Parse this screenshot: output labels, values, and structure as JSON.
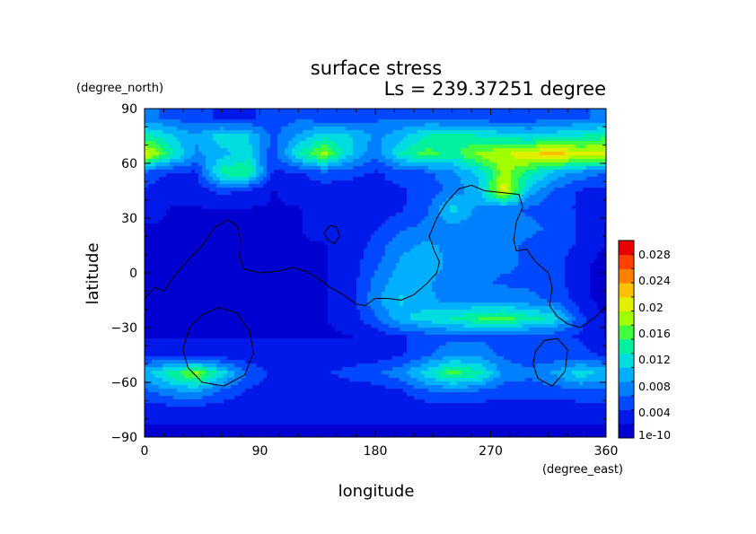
{
  "chart_data": {
    "type": "heatmap",
    "title": "surface stress",
    "subtitle": "Ls = 239.37251 degree",
    "xlabel": "longitude",
    "ylabel": "latitude",
    "xunits": "(degree_east)",
    "yunits": "(degree_north)",
    "xlim": [
      0,
      360
    ],
    "ylim": [
      -90,
      90
    ],
    "xticks": [
      "0",
      "90",
      "180",
      "270",
      "360"
    ],
    "yticks": [
      "90",
      "60",
      "30",
      "0",
      "−30",
      "−60",
      "−90"
    ],
    "colorbar": {
      "min": 0,
      "max": 0.03,
      "tick_labels": [
        "1e-10",
        "0.004",
        "0.008",
        "0.012",
        "0.016",
        "0.02",
        "0.024",
        "0.028"
      ],
      "colors": [
        "#0000d0",
        "#0018e8",
        "#0048ff",
        "#0080ff",
        "#00b0ff",
        "#00dce0",
        "#00f0a0",
        "#40ff40",
        "#a0ff00",
        "#e0f000",
        "#ffc000",
        "#ff8000",
        "#ff4000",
        "#e80000"
      ]
    },
    "lat": [
      85,
      75,
      65,
      55,
      45,
      35,
      25,
      15,
      5,
      -5,
      -15,
      -25,
      -35,
      -45,
      -55,
      -65,
      -75,
      -85
    ],
    "lon": [
      0,
      20,
      40,
      60,
      80,
      100,
      120,
      140,
      160,
      180,
      200,
      220,
      240,
      260,
      280,
      300,
      320,
      340,
      360
    ],
    "values": [
      [
        0.007,
        0.006,
        0.005,
        0.004,
        0.004,
        0.005,
        0.006,
        0.005,
        0.005,
        0.006,
        0.006,
        0.006,
        0.005,
        0.005,
        0.005,
        0.005,
        0.006,
        0.006,
        0.007
      ],
      [
        0.014,
        0.011,
        0.009,
        0.012,
        0.011,
        0.006,
        0.009,
        0.012,
        0.011,
        0.008,
        0.01,
        0.013,
        0.014,
        0.013,
        0.012,
        0.011,
        0.012,
        0.013,
        0.014
      ],
      [
        0.021,
        0.014,
        0.008,
        0.01,
        0.012,
        0.005,
        0.013,
        0.018,
        0.011,
        0.007,
        0.013,
        0.016,
        0.014,
        0.018,
        0.019,
        0.021,
        0.023,
        0.02,
        0.021
      ],
      [
        0.006,
        0.004,
        0.004,
        0.014,
        0.015,
        0.004,
        0.004,
        0.006,
        0.005,
        0.004,
        0.005,
        0.006,
        0.008,
        0.011,
        0.018,
        0.014,
        0.01,
        0.008,
        0.006
      ],
      [
        0.004,
        0.003,
        0.003,
        0.005,
        0.004,
        0.002,
        0.003,
        0.003,
        0.003,
        0.004,
        0.004,
        0.005,
        0.007,
        0.01,
        0.021,
        0.01,
        0.006,
        0.004,
        0.004
      ],
      [
        0.003,
        0.002,
        0.002,
        0.002,
        0.002,
        0.002,
        0.002,
        0.003,
        0.003,
        0.003,
        0.004,
        0.006,
        0.012,
        0.008,
        0.007,
        0.006,
        0.005,
        0.004,
        0.003
      ],
      [
        0.002,
        0.002,
        0.002,
        0.002,
        0.002,
        0.002,
        0.002,
        0.003,
        0.003,
        0.004,
        0.006,
        0.007,
        0.008,
        0.007,
        0.007,
        0.007,
        0.006,
        0.004,
        0.002
      ],
      [
        0.002,
        0.001,
        0.001,
        0.001,
        0.001,
        0.002,
        0.002,
        0.002,
        0.003,
        0.005,
        0.008,
        0.009,
        0.008,
        0.008,
        0.007,
        0.006,
        0.005,
        0.004,
        0.002
      ],
      [
        0.001,
        0.001,
        0.001,
        0.001,
        0.001,
        0.001,
        0.002,
        0.002,
        0.003,
        0.006,
        0.009,
        0.01,
        0.008,
        0.007,
        0.007,
        0.006,
        0.005,
        0.003,
        0.001
      ],
      [
        0.001,
        0.001,
        0.001,
        0.001,
        0.001,
        0.001,
        0.002,
        0.002,
        0.003,
        0.007,
        0.01,
        0.009,
        0.007,
        0.007,
        0.006,
        0.006,
        0.005,
        0.003,
        0.001
      ],
      [
        0.001,
        0.001,
        0.001,
        0.001,
        0.001,
        0.001,
        0.002,
        0.002,
        0.003,
        0.008,
        0.011,
        0.009,
        0.008,
        0.008,
        0.008,
        0.007,
        0.006,
        0.003,
        0.001
      ],
      [
        0.002,
        0.001,
        0.001,
        0.001,
        0.001,
        0.002,
        0.002,
        0.002,
        0.003,
        0.006,
        0.01,
        0.012,
        0.013,
        0.015,
        0.016,
        0.014,
        0.012,
        0.005,
        0.002
      ],
      [
        0.002,
        0.002,
        0.002,
        0.002,
        0.002,
        0.002,
        0.002,
        0.002,
        0.002,
        0.003,
        0.004,
        0.005,
        0.006,
        0.006,
        0.005,
        0.005,
        0.005,
        0.004,
        0.002
      ],
      [
        0.004,
        0.003,
        0.003,
        0.003,
        0.003,
        0.003,
        0.003,
        0.003,
        0.003,
        0.003,
        0.004,
        0.006,
        0.008,
        0.008,
        0.006,
        0.005,
        0.005,
        0.005,
        0.004
      ],
      [
        0.01,
        0.014,
        0.018,
        0.012,
        0.006,
        0.004,
        0.004,
        0.004,
        0.005,
        0.006,
        0.008,
        0.012,
        0.016,
        0.014,
        0.008,
        0.007,
        0.009,
        0.012,
        0.01
      ],
      [
        0.006,
        0.008,
        0.009,
        0.006,
        0.004,
        0.003,
        0.003,
        0.003,
        0.003,
        0.003,
        0.004,
        0.006,
        0.007,
        0.006,
        0.005,
        0.005,
        0.005,
        0.006,
        0.006
      ],
      [
        0.003,
        0.003,
        0.003,
        0.003,
        0.003,
        0.003,
        0.003,
        0.003,
        0.003,
        0.003,
        0.003,
        0.003,
        0.003,
        0.003,
        0.003,
        0.003,
        0.003,
        0.003,
        0.003
      ],
      [
        0.002,
        0.002,
        0.002,
        0.002,
        0.002,
        0.002,
        0.002,
        0.002,
        0.002,
        0.002,
        0.002,
        0.002,
        0.002,
        0.002,
        0.002,
        0.002,
        0.002,
        0.002,
        0.002
      ]
    ],
    "contours": [
      [
        [
          15,
          -10
        ],
        [
          25,
          0
        ],
        [
          35,
          8
        ],
        [
          45,
          15
        ],
        [
          55,
          25
        ],
        [
          65,
          29
        ],
        [
          72,
          26
        ],
        [
          75,
          18
        ],
        [
          74,
          8
        ],
        [
          78,
          2
        ],
        [
          90,
          0
        ],
        [
          105,
          1
        ],
        [
          115,
          3
        ],
        [
          125,
          1
        ],
        [
          135,
          -3
        ],
        [
          145,
          -8
        ],
        [
          155,
          -12
        ],
        [
          165,
          -17
        ],
        [
          172,
          -18
        ],
        [
          180,
          -14
        ],
        [
          190,
          -14
        ],
        [
          200,
          -15
        ],
        [
          210,
          -12
        ],
        [
          220,
          -6
        ],
        [
          228,
          0
        ],
        [
          230,
          6
        ],
        [
          226,
          12
        ],
        [
          222,
          20
        ],
        [
          228,
          30
        ],
        [
          235,
          38
        ],
        [
          245,
          46
        ],
        [
          255,
          48
        ],
        [
          265,
          45
        ],
        [
          278,
          44
        ],
        [
          292,
          43
        ],
        [
          295,
          36
        ],
        [
          290,
          28
        ],
        [
          288,
          18
        ],
        [
          290,
          12
        ],
        [
          298,
          13
        ],
        [
          305,
          6
        ],
        [
          315,
          0
        ],
        [
          318,
          -8
        ],
        [
          316,
          -18
        ],
        [
          322,
          -24
        ],
        [
          330,
          -28
        ],
        [
          340,
          -30
        ],
        [
          352,
          -24
        ],
        [
          360,
          -18
        ]
      ],
      [
        [
          0,
          -14
        ],
        [
          8,
          -8
        ],
        [
          15,
          -10
        ]
      ],
      [
        [
          140,
          22
        ],
        [
          145,
          26
        ],
        [
          150,
          25
        ],
        [
          152,
          20
        ],
        [
          148,
          16
        ],
        [
          143,
          18
        ],
        [
          140,
          22
        ]
      ],
      [
        [
          30,
          -42
        ],
        [
          35,
          -30
        ],
        [
          45,
          -23
        ],
        [
          58,
          -19
        ],
        [
          72,
          -22
        ],
        [
          82,
          -32
        ],
        [
          85,
          -44
        ],
        [
          78,
          -56
        ],
        [
          62,
          -62
        ],
        [
          45,
          -60
        ],
        [
          34,
          -52
        ],
        [
          30,
          -42
        ]
      ],
      [
        [
          305,
          -43
        ],
        [
          312,
          -37
        ],
        [
          322,
          -36
        ],
        [
          330,
          -42
        ],
        [
          328,
          -54
        ],
        [
          318,
          -62
        ],
        [
          307,
          -58
        ],
        [
          303,
          -50
        ],
        [
          305,
          -43
        ]
      ]
    ]
  }
}
